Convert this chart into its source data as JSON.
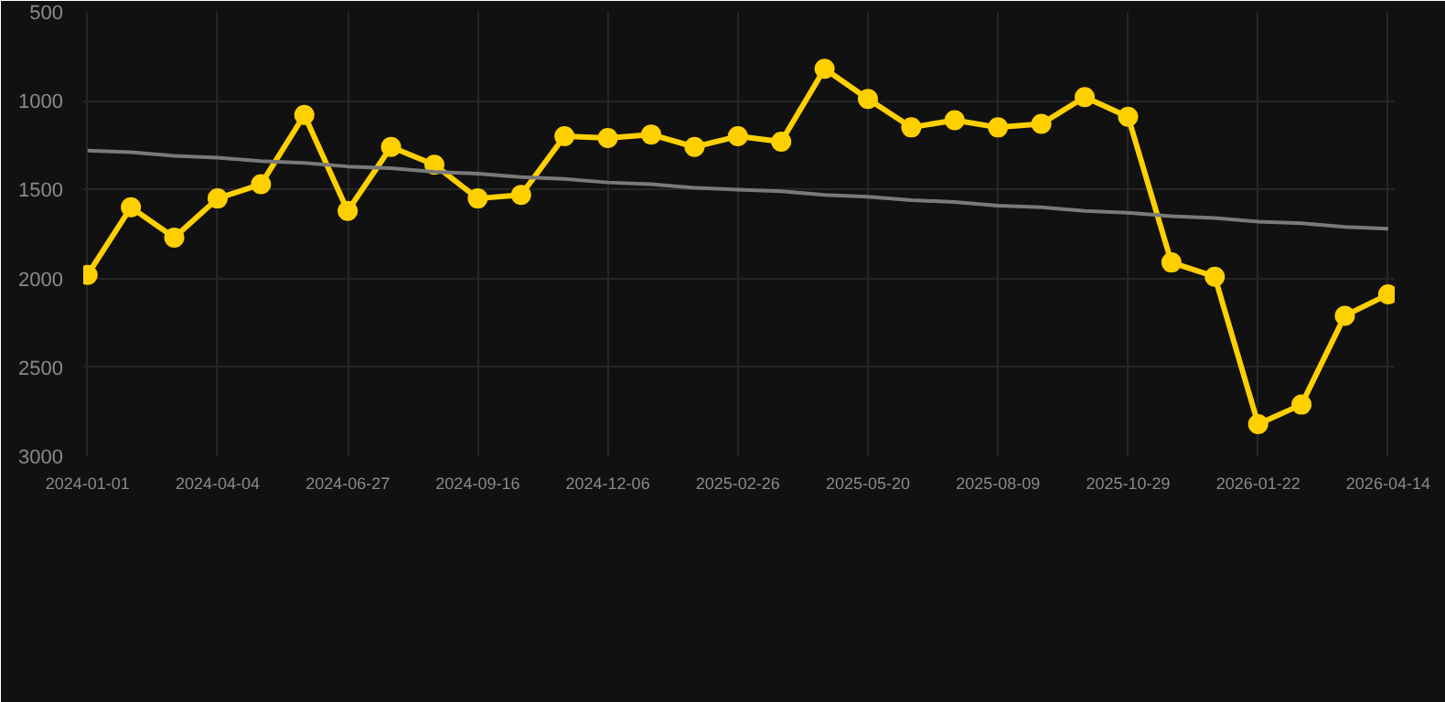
{
  "chart_data": {
    "type": "line",
    "categories": [
      "2024-01-01",
      null,
      null,
      "2024-04-04",
      null,
      null,
      "2024-06-27",
      null,
      null,
      "2024-09-16",
      null,
      null,
      "2024-12-06",
      null,
      null,
      "2025-02-26",
      null,
      null,
      "2025-05-20",
      null,
      null,
      "2025-08-09",
      null,
      null,
      "2025-10-29",
      null,
      null,
      "2026-01-22",
      null,
      null,
      "2026-04-14"
    ],
    "series": [
      {
        "color": "#ffd000",
        "values": [
          1980,
          1600,
          1770,
          1550,
          1470,
          1080,
          1620,
          1260,
          1360,
          1550,
          1530,
          1200,
          1210,
          1190,
          1260,
          1200,
          1230,
          820,
          990,
          1150,
          1110,
          1150,
          1130,
          980,
          1090,
          1910,
          1990,
          2820,
          2710,
          2210,
          2090
        ]
      },
      {
        "type": "line",
        "color": "#7a7a7a",
        "marker": "none",
        "values": [
          1280,
          1290,
          1310,
          1320,
          1340,
          1350,
          1370,
          1380,
          1400,
          1410,
          1430,
          1440,
          1460,
          1470,
          1490,
          1500,
          1510,
          1530,
          1540,
          1560,
          1570,
          1590,
          1600,
          1620,
          1630,
          1650,
          1660,
          1680,
          1690,
          1710,
          1720
        ]
      }
    ],
    "ylim": [
      3000,
      500
    ],
    "yticks": [
      500,
      1000,
      1500,
      2000,
      2500,
      3000
    ],
    "grid": true,
    "marker": "circle"
  }
}
